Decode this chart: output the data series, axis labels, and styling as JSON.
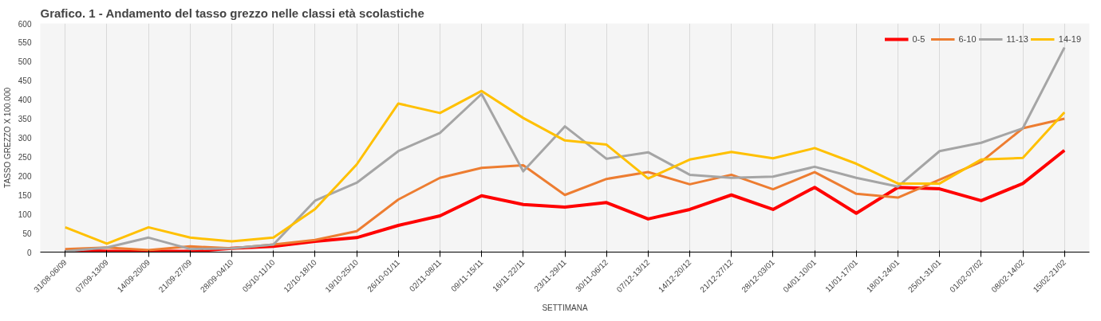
{
  "chart_data": {
    "type": "line",
    "title": "Grafico. 1 - Andamento del tasso grezzo nelle classi età scolastiche",
    "xlabel": "SETTIMANA",
    "ylabel": "TASSO GREZZO X 100.000",
    "categories": [
      "31/08-06/09",
      "07/09-13/09",
      "14/09-20/09",
      "21/09-27/09",
      "28/09-04/10",
      "05/10-11/10",
      "12/10-18/10",
      "19/10-25/10",
      "26/10-01/11",
      "02/11-08/11",
      "09/11-15/11",
      "16/11-22/11",
      "23/11-29/11",
      "30/11-06/12",
      "07/12-13/12",
      "14/12-20/12",
      "21/12-27/12",
      "28/12-03/01",
      "04/01-10/01",
      "11/01-17/01",
      "18/01-24/01",
      "25/01-31/01",
      "01/02-07/02",
      "08/02-14/02",
      "15/02-21/02"
    ],
    "ylim": [
      0,
      600
    ],
    "yticks": [
      0,
      50,
      100,
      150,
      200,
      250,
      300,
      350,
      400,
      450,
      500,
      550,
      600
    ],
    "grid": "x",
    "legend": "top right",
    "line_style": "solid",
    "marker": "none",
    "series": [
      {
        "name": "0-5",
        "color": "#ff0000",
        "values": [
          5,
          2,
          2,
          2,
          10,
          15,
          28,
          38,
          70,
          95,
          148,
          125,
          118,
          130,
          87,
          112,
          150,
          112,
          170,
          102,
          170,
          166,
          135,
          180,
          267
        ]
      },
      {
        "name": "6-10",
        "color": "#ed7d31",
        "values": [
          8,
          12,
          5,
          15,
          10,
          20,
          32,
          55,
          138,
          195,
          221,
          228,
          150,
          192,
          210,
          178,
          203,
          165,
          210,
          153,
          143,
          190,
          237,
          325,
          350
        ]
      },
      {
        "name": "11-13",
        "color": "#a5a5a5",
        "values": [
          2,
          12,
          38,
          8,
          10,
          20,
          135,
          182,
          265,
          313,
          415,
          212,
          330,
          245,
          262,
          203,
          195,
          198,
          224,
          195,
          172,
          265,
          287,
          325,
          537
        ]
      },
      {
        "name": "14-19",
        "color": "#ffc000",
        "values": [
          65,
          22,
          65,
          38,
          28,
          38,
          113,
          230,
          390,
          365,
          423,
          352,
          293,
          282,
          193,
          243,
          263,
          246,
          273,
          232,
          180,
          180,
          243,
          247,
          367
        ]
      }
    ]
  }
}
